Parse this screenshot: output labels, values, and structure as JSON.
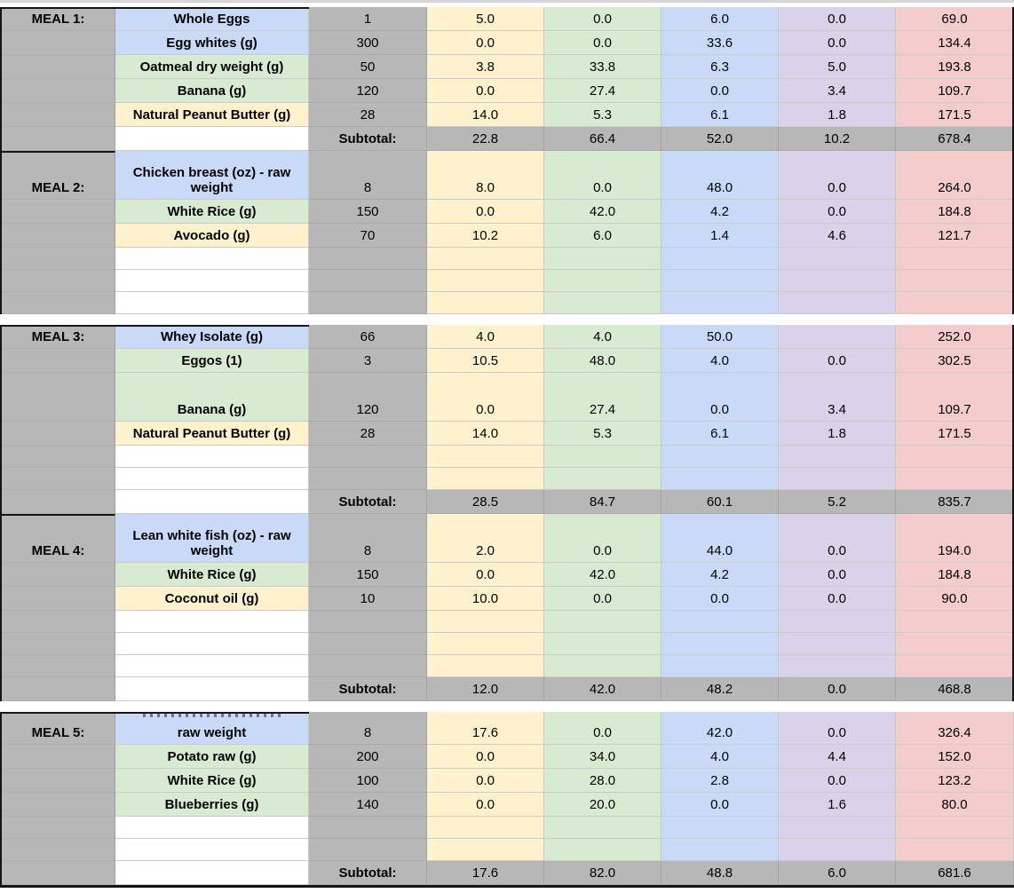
{
  "palette": {
    "meal_column_gray": "#b7b7b7",
    "fat_yellow": "#fff2cc",
    "carb_green": "#d9ead3",
    "protein_blue": "#c9daf8",
    "fiber_purple": "#d9d2e9",
    "calorie_pink": "#f4cccc",
    "block_border_black": "#151515"
  },
  "value_column_colors": [
    "yellow",
    "green",
    "blue",
    "purple",
    "pink"
  ],
  "sections": [
    {
      "rows": [
        {
          "type": "item",
          "meal": "MEAL 1:",
          "meal_start": true,
          "food": "Whole Eggs",
          "food_bg": "blue",
          "qty": "1",
          "values": [
            "5.0",
            "0.0",
            "6.0",
            "0.0",
            "69.0"
          ]
        },
        {
          "type": "item",
          "food": "Egg whites (g)",
          "food_bg": "blue",
          "qty": "300",
          "values": [
            "0.0",
            "0.0",
            "33.6",
            "0.0",
            "134.4"
          ]
        },
        {
          "type": "item",
          "food": "Oatmeal dry weight (g)",
          "food_bg": "green",
          "qty": "50",
          "values": [
            "3.8",
            "33.8",
            "6.3",
            "5.0",
            "193.8"
          ]
        },
        {
          "type": "item",
          "food": "Banana (g)",
          "food_bg": "green",
          "qty": "120",
          "values": [
            "0.0",
            "27.4",
            "0.0",
            "3.4",
            "109.7"
          ]
        },
        {
          "type": "item",
          "food": "Natural Peanut Butter (g)",
          "food_bg": "yellow",
          "qty": "28",
          "values": [
            "14.0",
            "5.3",
            "6.1",
            "1.8",
            "171.5"
          ]
        },
        {
          "type": "subtotal",
          "label": "Subtotal:",
          "values": [
            "22.8",
            "66.4",
            "52.0",
            "10.2",
            "678.4"
          ]
        },
        {
          "type": "item",
          "meal": "MEAL 2:",
          "meal_start": true,
          "food": "Chicken breast (oz) - raw weight",
          "food_bg": "blue",
          "qty": "8",
          "values": [
            "8.0",
            "0.0",
            "48.0",
            "0.0",
            "264.0"
          ],
          "tall": true
        },
        {
          "type": "item",
          "food": "White Rice  (g)",
          "food_bg": "green",
          "qty": "150",
          "values": [
            "0.0",
            "42.0",
            "4.2",
            "0.0",
            "184.8"
          ]
        },
        {
          "type": "item",
          "food": "Avocado (g)",
          "food_bg": "yellow",
          "qty": "70",
          "values": [
            "10.2",
            "6.0",
            "1.4",
            "4.6",
            "121.7"
          ]
        },
        {
          "type": "empty"
        },
        {
          "type": "empty"
        },
        {
          "type": "empty"
        }
      ]
    },
    {
      "rows": [
        {
          "type": "item",
          "meal": "MEAL 3:",
          "meal_start": true,
          "food": "Whey Isolate (g)",
          "food_bg": "blue",
          "qty": "66",
          "values": [
            "4.0",
            "4.0",
            "50.0",
            "",
            "252.0"
          ]
        },
        {
          "type": "item",
          "food": "Eggos (1)",
          "food_bg": "green",
          "qty": "3",
          "values": [
            "10.5",
            "48.0",
            "4.0",
            "0.0",
            "302.5"
          ]
        },
        {
          "type": "item",
          "food": "Banana (g)",
          "food_bg": "green",
          "qty": "120",
          "values": [
            "0.0",
            "27.4",
            "0.0",
            "3.4",
            "109.7"
          ],
          "tall": true
        },
        {
          "type": "item",
          "food": "Natural Peanut Butter (g)",
          "food_bg": "yellow",
          "qty": "28",
          "values": [
            "14.0",
            "5.3",
            "6.1",
            "1.8",
            "171.5"
          ]
        },
        {
          "type": "empty"
        },
        {
          "type": "empty"
        },
        {
          "type": "subtotal",
          "label": "Subtotal:",
          "values": [
            "28.5",
            "84.7",
            "60.1",
            "5.2",
            "835.7"
          ]
        },
        {
          "type": "item",
          "meal": "MEAL 4:",
          "meal_start": true,
          "food": "Lean white fish (oz) - raw weight",
          "food_bg": "blue",
          "qty": "8",
          "values": [
            "2.0",
            "0.0",
            "44.0",
            "0.0",
            "194.0"
          ],
          "tall": true
        },
        {
          "type": "item",
          "food": "White Rice  (g)",
          "food_bg": "green",
          "qty": "150",
          "values": [
            "0.0",
            "42.0",
            "4.2",
            "0.0",
            "184.8"
          ]
        },
        {
          "type": "item",
          "food": "Coconut oil (g)",
          "food_bg": "yellow",
          "qty": "10",
          "values": [
            "10.0",
            "0.0",
            "0.0",
            "0.0",
            "90.0"
          ]
        },
        {
          "type": "empty"
        },
        {
          "type": "empty"
        },
        {
          "type": "empty"
        },
        {
          "type": "subtotal",
          "label": "Subtotal:",
          "values": [
            "12.0",
            "42.0",
            "48.2",
            "0.0",
            "468.8"
          ]
        }
      ]
    },
    {
      "rows": [
        {
          "type": "item",
          "meal": "MEAL 5:",
          "meal_start": true,
          "food": "raw weight",
          "food_bg": "blue",
          "qty": "8",
          "values": [
            "17.6",
            "0.0",
            "42.0",
            "0.0",
            "326.4"
          ],
          "clip": true
        },
        {
          "type": "item",
          "food": "Potato raw (g)",
          "food_bg": "green",
          "qty": "200",
          "values": [
            "0.0",
            "34.0",
            "4.0",
            "4.4",
            "152.0"
          ]
        },
        {
          "type": "item",
          "food": "White Rice  (g)",
          "food_bg": "green",
          "qty": "100",
          "values": [
            "0.0",
            "28.0",
            "2.8",
            "0.0",
            "123.2"
          ]
        },
        {
          "type": "item",
          "food": "Blueberries (g)",
          "food_bg": "green",
          "qty": "140",
          "values": [
            "0.0",
            "20.0",
            "0.0",
            "1.6",
            "80.0"
          ]
        },
        {
          "type": "empty"
        },
        {
          "type": "empty"
        },
        {
          "type": "subtotal",
          "label": "Subtotal:",
          "values": [
            "17.6",
            "82.0",
            "48.8",
            "6.0",
            "681.6"
          ]
        }
      ]
    }
  ]
}
